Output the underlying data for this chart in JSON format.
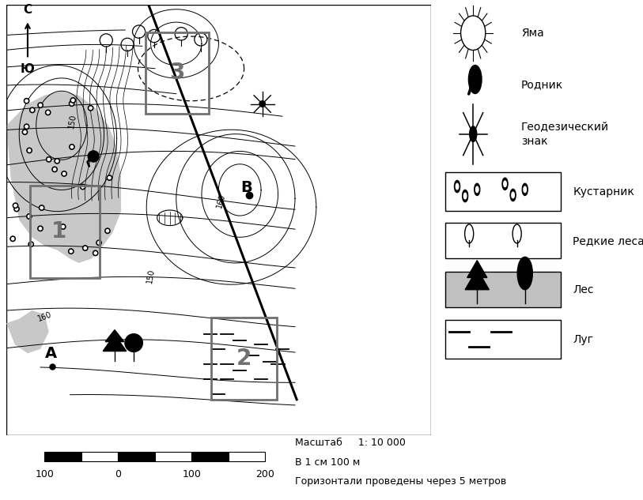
{
  "bg_color": "#ffffff",
  "north_label": "С",
  "south_label": "Ю",
  "legend_yama": "Яма",
  "legend_rodnik": "Родник",
  "legend_geodez1": "Геодезический",
  "legend_geodez2": "знак",
  "legend_kustarnik": "Кустарник",
  "legend_redkie": "Редкие леса",
  "legend_les": "Лес",
  "legend_lug": "Луг",
  "scale_line1": "Масштаб     1: 10 000",
  "scale_line2": "В 1 см 100 м",
  "scale_line3": "Горизонтали проведены через 5 метров",
  "elev_150a": "150",
  "elev_150b": "150",
  "elev_160a": "160",
  "elev_160b": "160",
  "label_A": "A",
  "label_B": "B",
  "box1_label": "1",
  "box2_label": "2",
  "box3_label": "3"
}
